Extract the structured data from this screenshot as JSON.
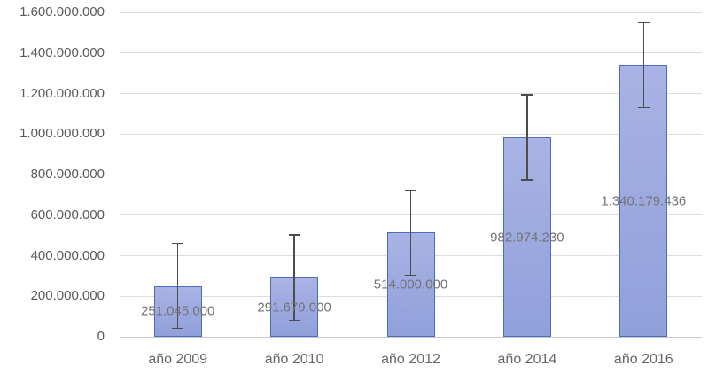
{
  "chart_data": {
    "type": "bar",
    "title": "",
    "xlabel": "",
    "ylabel": "",
    "categories": [
      "año 2009",
      "año 2010",
      "año 2012",
      "año 2014",
      "año 2016"
    ],
    "values": [
      251045000,
      291679000,
      514000000,
      982974230,
      1340179436
    ],
    "data_labels": [
      "251.045.000",
      "291.679.000",
      "514.000.000",
      "982.974.230",
      "1.340.179.436"
    ],
    "data_label_position": "center-of-bar",
    "error_bars": {
      "plus": 210000000,
      "minus": 210000000
    },
    "y_axis": {
      "min": 0,
      "max": 1600000000,
      "tick_interval": 200000000,
      "tick_labels": [
        "0",
        "200.000.000",
        "400.000.000",
        "600.000.000",
        "800.000.000",
        "1.000.000.000",
        "1.200.000.000",
        "1.400.000.000",
        "1.600.000.000"
      ]
    },
    "grid": true,
    "legend": false
  },
  "style": {
    "background": "#FFFFFF",
    "bar_fill_top": "#A9B3E4",
    "bar_fill_bottom": "#90A0DB",
    "bar_border": "#4B6CC3",
    "error_bar_color": "#4D4D4D",
    "gridline_color": "#DDDDDD",
    "axis_line_color": "#C8C8C8",
    "tick_label_color": "#595959",
    "data_label_color": "#737373",
    "category_label_color": "#666666"
  }
}
